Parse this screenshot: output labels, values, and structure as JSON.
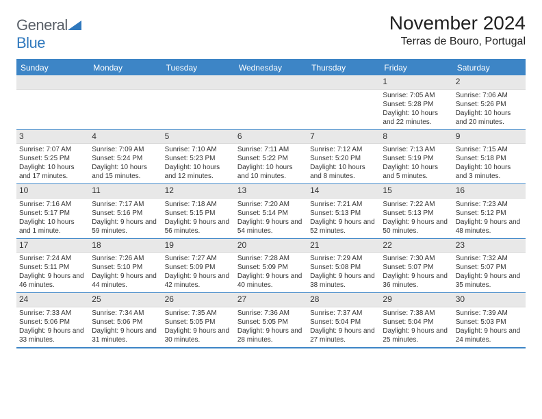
{
  "brand": {
    "part1": "General",
    "part2": "Blue"
  },
  "title": "November 2024",
  "location": "Terras de Bouro, Portugal",
  "colors": {
    "header_bg": "#3d85c6",
    "header_text": "#ffffff",
    "daynum_bg": "#e8e8e8",
    "border": "#3d85c6",
    "logo_gray": "#5a6068",
    "logo_blue": "#2f78bd",
    "text": "#333333",
    "page_bg": "#ffffff"
  },
  "weekdays": [
    "Sunday",
    "Monday",
    "Tuesday",
    "Wednesday",
    "Thursday",
    "Friday",
    "Saturday"
  ],
  "weeks": [
    [
      null,
      null,
      null,
      null,
      null,
      {
        "n": "1",
        "sr": "Sunrise: 7:05 AM",
        "ss": "Sunset: 5:28 PM",
        "dl": "Daylight: 10 hours and 22 minutes."
      },
      {
        "n": "2",
        "sr": "Sunrise: 7:06 AM",
        "ss": "Sunset: 5:26 PM",
        "dl": "Daylight: 10 hours and 20 minutes."
      }
    ],
    [
      {
        "n": "3",
        "sr": "Sunrise: 7:07 AM",
        "ss": "Sunset: 5:25 PM",
        "dl": "Daylight: 10 hours and 17 minutes."
      },
      {
        "n": "4",
        "sr": "Sunrise: 7:09 AM",
        "ss": "Sunset: 5:24 PM",
        "dl": "Daylight: 10 hours and 15 minutes."
      },
      {
        "n": "5",
        "sr": "Sunrise: 7:10 AM",
        "ss": "Sunset: 5:23 PM",
        "dl": "Daylight: 10 hours and 12 minutes."
      },
      {
        "n": "6",
        "sr": "Sunrise: 7:11 AM",
        "ss": "Sunset: 5:22 PM",
        "dl": "Daylight: 10 hours and 10 minutes."
      },
      {
        "n": "7",
        "sr": "Sunrise: 7:12 AM",
        "ss": "Sunset: 5:20 PM",
        "dl": "Daylight: 10 hours and 8 minutes."
      },
      {
        "n": "8",
        "sr": "Sunrise: 7:13 AM",
        "ss": "Sunset: 5:19 PM",
        "dl": "Daylight: 10 hours and 5 minutes."
      },
      {
        "n": "9",
        "sr": "Sunrise: 7:15 AM",
        "ss": "Sunset: 5:18 PM",
        "dl": "Daylight: 10 hours and 3 minutes."
      }
    ],
    [
      {
        "n": "10",
        "sr": "Sunrise: 7:16 AM",
        "ss": "Sunset: 5:17 PM",
        "dl": "Daylight: 10 hours and 1 minute."
      },
      {
        "n": "11",
        "sr": "Sunrise: 7:17 AM",
        "ss": "Sunset: 5:16 PM",
        "dl": "Daylight: 9 hours and 59 minutes."
      },
      {
        "n": "12",
        "sr": "Sunrise: 7:18 AM",
        "ss": "Sunset: 5:15 PM",
        "dl": "Daylight: 9 hours and 56 minutes."
      },
      {
        "n": "13",
        "sr": "Sunrise: 7:20 AM",
        "ss": "Sunset: 5:14 PM",
        "dl": "Daylight: 9 hours and 54 minutes."
      },
      {
        "n": "14",
        "sr": "Sunrise: 7:21 AM",
        "ss": "Sunset: 5:13 PM",
        "dl": "Daylight: 9 hours and 52 minutes."
      },
      {
        "n": "15",
        "sr": "Sunrise: 7:22 AM",
        "ss": "Sunset: 5:13 PM",
        "dl": "Daylight: 9 hours and 50 minutes."
      },
      {
        "n": "16",
        "sr": "Sunrise: 7:23 AM",
        "ss": "Sunset: 5:12 PM",
        "dl": "Daylight: 9 hours and 48 minutes."
      }
    ],
    [
      {
        "n": "17",
        "sr": "Sunrise: 7:24 AM",
        "ss": "Sunset: 5:11 PM",
        "dl": "Daylight: 9 hours and 46 minutes."
      },
      {
        "n": "18",
        "sr": "Sunrise: 7:26 AM",
        "ss": "Sunset: 5:10 PM",
        "dl": "Daylight: 9 hours and 44 minutes."
      },
      {
        "n": "19",
        "sr": "Sunrise: 7:27 AM",
        "ss": "Sunset: 5:09 PM",
        "dl": "Daylight: 9 hours and 42 minutes."
      },
      {
        "n": "20",
        "sr": "Sunrise: 7:28 AM",
        "ss": "Sunset: 5:09 PM",
        "dl": "Daylight: 9 hours and 40 minutes."
      },
      {
        "n": "21",
        "sr": "Sunrise: 7:29 AM",
        "ss": "Sunset: 5:08 PM",
        "dl": "Daylight: 9 hours and 38 minutes."
      },
      {
        "n": "22",
        "sr": "Sunrise: 7:30 AM",
        "ss": "Sunset: 5:07 PM",
        "dl": "Daylight: 9 hours and 36 minutes."
      },
      {
        "n": "23",
        "sr": "Sunrise: 7:32 AM",
        "ss": "Sunset: 5:07 PM",
        "dl": "Daylight: 9 hours and 35 minutes."
      }
    ],
    [
      {
        "n": "24",
        "sr": "Sunrise: 7:33 AM",
        "ss": "Sunset: 5:06 PM",
        "dl": "Daylight: 9 hours and 33 minutes."
      },
      {
        "n": "25",
        "sr": "Sunrise: 7:34 AM",
        "ss": "Sunset: 5:06 PM",
        "dl": "Daylight: 9 hours and 31 minutes."
      },
      {
        "n": "26",
        "sr": "Sunrise: 7:35 AM",
        "ss": "Sunset: 5:05 PM",
        "dl": "Daylight: 9 hours and 30 minutes."
      },
      {
        "n": "27",
        "sr": "Sunrise: 7:36 AM",
        "ss": "Sunset: 5:05 PM",
        "dl": "Daylight: 9 hours and 28 minutes."
      },
      {
        "n": "28",
        "sr": "Sunrise: 7:37 AM",
        "ss": "Sunset: 5:04 PM",
        "dl": "Daylight: 9 hours and 27 minutes."
      },
      {
        "n": "29",
        "sr": "Sunrise: 7:38 AM",
        "ss": "Sunset: 5:04 PM",
        "dl": "Daylight: 9 hours and 25 minutes."
      },
      {
        "n": "30",
        "sr": "Sunrise: 7:39 AM",
        "ss": "Sunset: 5:03 PM",
        "dl": "Daylight: 9 hours and 24 minutes."
      }
    ]
  ]
}
